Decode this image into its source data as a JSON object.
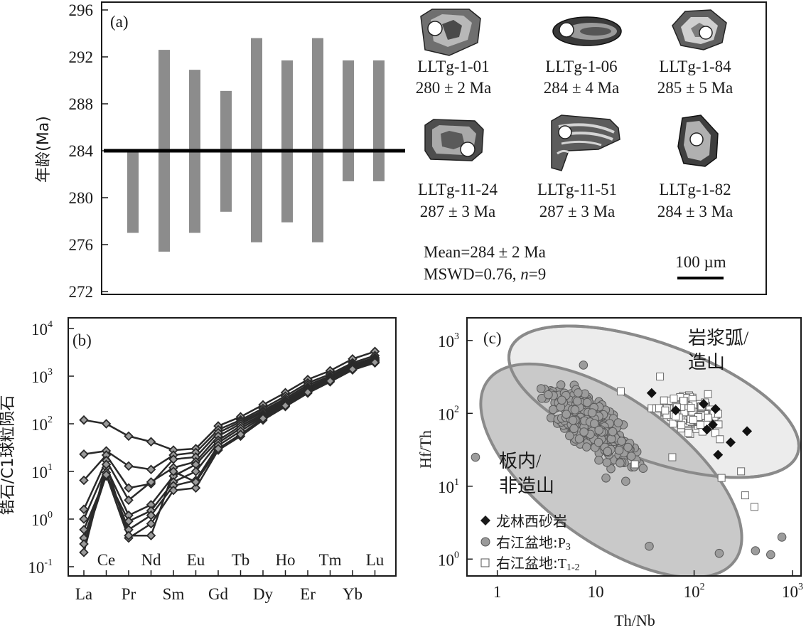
{
  "chart_data": [
    {
      "type": "range_bar",
      "panel_label": "(a)",
      "ylabel": "年龄(Ma)",
      "ylim": [
        272,
        296
      ],
      "yticks": [
        272,
        276,
        280,
        284,
        288,
        292,
        296
      ],
      "weighted_mean": 284,
      "bars": [
        {
          "low": 277.0,
          "high": 284.0
        },
        {
          "low": 275.4,
          "high": 292.6
        },
        {
          "low": 277.0,
          "high": 290.9
        },
        {
          "low": 278.8,
          "high": 289.1
        },
        {
          "low": 276.2,
          "high": 293.6
        },
        {
          "low": 277.9,
          "high": 291.7
        },
        {
          "low": 276.2,
          "high": 293.6
        },
        {
          "low": 281.4,
          "high": 291.7
        },
        {
          "low": 281.4,
          "high": 291.7
        }
      ],
      "grains": [
        {
          "name": "LLTg-1-01",
          "age": "280 ± 2 Ma"
        },
        {
          "name": "LLTg-1-06",
          "age": "284 ± 4 Ma"
        },
        {
          "name": "LLTg-1-84",
          "age": "285 ± 5 Ma"
        },
        {
          "name": "LLTg-11-24",
          "age": "287 ± 3 Ma"
        },
        {
          "name": "LLTg-11-51",
          "age": "287 ± 3 Ma"
        },
        {
          "name": "LLTg-1-82",
          "age": "284 ± 3 Ma"
        }
      ],
      "mean_text": "Mean=284 ± 2 Ma",
      "mswd_text_a": "MSWD=0.76, ",
      "mswd_text_n": "n",
      "mswd_text_b": "=9",
      "scale_bar": "100 µm"
    },
    {
      "type": "line",
      "panel_label": "(b)",
      "ylabel": "锆石/C1球粒陨石",
      "yscale": "log",
      "ylim": [
        0.1,
        10000
      ],
      "ytick_exponents": [
        -1,
        0,
        1,
        2,
        3,
        4
      ],
      "x_bottom": [
        "La",
        "Pr",
        "Sm",
        "Gd",
        "Dy",
        "Er",
        "Yb"
      ],
      "x_top": [
        "Ce",
        "Nd",
        "Eu",
        "Tb",
        "Ho",
        "Tm",
        "Lu"
      ],
      "elements": [
        "La",
        "Ce",
        "Pr",
        "Nd",
        "Sm",
        "Eu",
        "Gd",
        "Tb",
        "Dy",
        "Ho",
        "Er",
        "Tm",
        "Yb",
        "Lu"
      ],
      "series": [
        {
          "values": [
            120,
            100,
            55,
            42,
            28,
            30,
            90,
            140,
            250,
            450,
            850,
            1300,
            2300,
            3300
          ]
        },
        {
          "values": [
            23,
            27,
            13,
            11,
            22,
            25,
            75,
            120,
            210,
            380,
            720,
            1100,
            1900,
            2700
          ]
        },
        {
          "values": [
            6.5,
            22,
            4.5,
            5.5,
            18,
            20,
            65,
            110,
            190,
            340,
            650,
            1000,
            1750,
            2450
          ]
        },
        {
          "values": [
            1.6,
            17,
            2.5,
            6,
            12,
            16,
            55,
            100,
            175,
            310,
            590,
            930,
            1650,
            2300
          ]
        },
        {
          "values": [
            1.0,
            12,
            1.2,
            2,
            8,
            14,
            45,
            90,
            160,
            290,
            560,
            900,
            1600,
            2200
          ]
        },
        {
          "values": [
            0.6,
            8,
            0.9,
            1.5,
            6,
            10,
            40,
            80,
            150,
            270,
            520,
            860,
            1500,
            2100
          ]
        },
        {
          "values": [
            0.4,
            9.5,
            0.6,
            1.2,
            5,
            6.5,
            35,
            70,
            140,
            250,
            490,
            820,
            1450,
            2000
          ]
        },
        {
          "values": [
            0.3,
            8.5,
            0.4,
            0.8,
            4,
            4.5,
            28,
            55,
            120,
            230,
            440,
            760,
            1350,
            1900
          ]
        },
        {
          "values": [
            0.2,
            14,
            0.45,
            0.45,
            10,
            6,
            30,
            60,
            130,
            240,
            460,
            790,
            1400,
            1950
          ]
        }
      ]
    },
    {
      "type": "scatter",
      "panel_label": "(c)",
      "xlabel": "Th/Nb",
      "ylabel": "Hf/Th",
      "xscale": "log",
      "yscale": "log",
      "xlim": [
        0.5,
        1200
      ],
      "ylim": [
        0.6,
        2000
      ],
      "xtick_labels": [
        "1",
        "10",
        "10",
        "10"
      ],
      "xtick_exponents": [
        "",
        "",
        "2",
        "3"
      ],
      "ytick_exponents": [
        "0",
        "1",
        "2",
        "3"
      ],
      "field_labels": {
        "arc": [
          "岩浆弧/",
          "造山"
        ],
        "intraplate": [
          "板内/",
          "非造山"
        ]
      },
      "legend": [
        {
          "marker": "diamond",
          "label": "龙林西砂岩"
        },
        {
          "marker": "circle",
          "label": "右江盆地:",
          "sub": "P3",
          "sub_main": "P",
          "sub_idx": "3"
        },
        {
          "marker": "square",
          "label": "右江盆地:",
          "sub_main": "T",
          "sub_idx": "1-2"
        }
      ],
      "series": [
        {
          "name": "龙林西砂岩",
          "marker": "diamond",
          "points": [
            [
              37,
              190
            ],
            [
              65,
              110
            ],
            [
              125,
              135
            ],
            [
              165,
              115
            ],
            [
              135,
              60
            ],
            [
              155,
              70
            ],
            [
              235,
              40
            ],
            [
              175,
              27
            ],
            [
              345,
              57
            ]
          ]
        },
        {
          "name": "右江盆地:P3",
          "marker": "circle",
          "count": 420,
          "center_x_log": 0.95,
          "center_y_log": 1.85,
          "spread": 0.28,
          "outliers": [
            [
              0.6,
              25
            ],
            [
              780,
              2
            ],
            [
              600,
              1.15
            ],
            [
              420,
              1.3
            ],
            [
              180,
              1.2
            ],
            [
              35,
              1.5
            ],
            [
              3.3,
              180
            ],
            [
              7.5,
              460
            ]
          ]
        },
        {
          "name": "右江盆地:T1-2",
          "marker": "square",
          "count": 250,
          "center_x_log": 1.95,
          "center_y_log": 2.0,
          "spread": 0.2,
          "outliers": [
            [
              330,
              7.5
            ],
            [
              410,
              5.2
            ],
            [
              300,
              16
            ],
            [
              190,
              13
            ],
            [
              60,
              25
            ],
            [
              25,
              20
            ],
            [
              18,
              200
            ],
            [
              45,
              320
            ]
          ]
        }
      ]
    }
  ]
}
